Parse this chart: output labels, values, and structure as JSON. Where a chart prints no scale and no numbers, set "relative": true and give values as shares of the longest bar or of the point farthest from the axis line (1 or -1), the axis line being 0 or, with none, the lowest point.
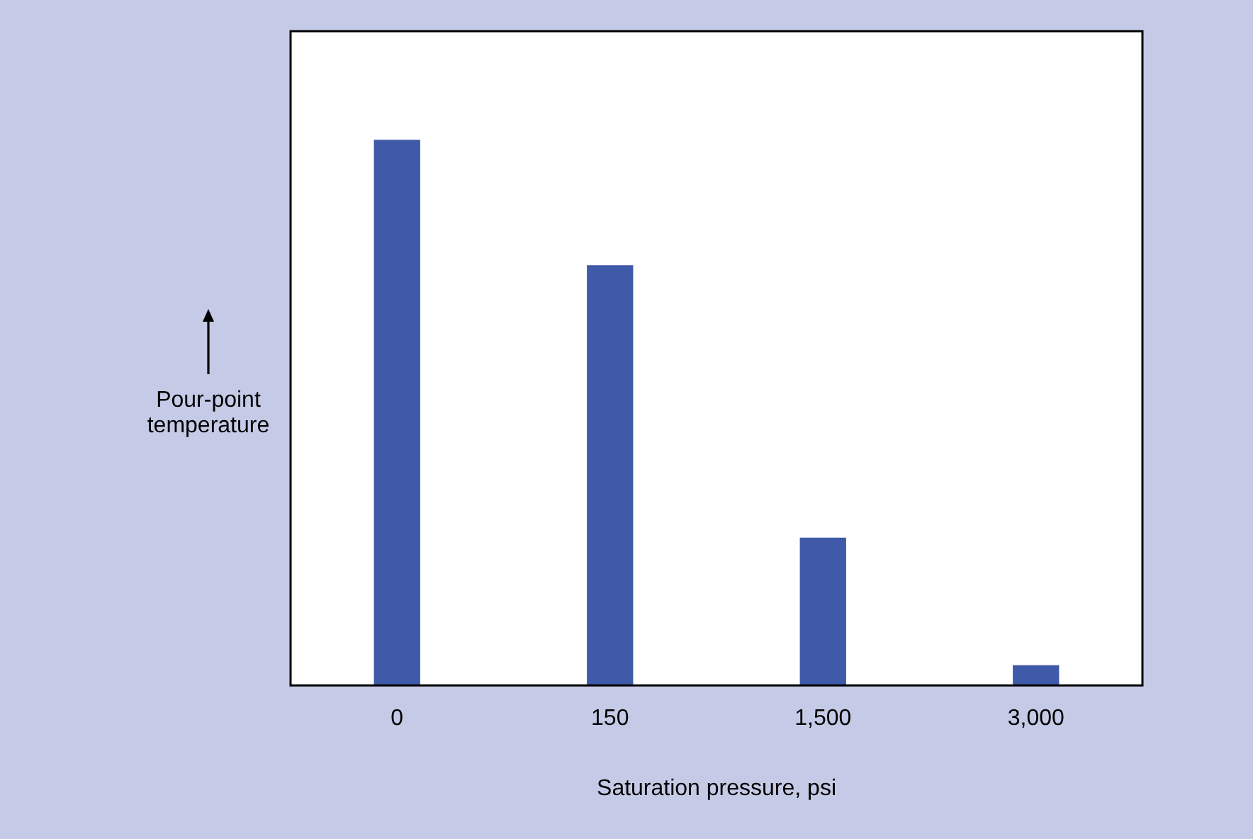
{
  "chart_data": {
    "type": "bar",
    "xlabel": "Saturation pressure, psi",
    "ylabel": "Pour-point temperature",
    "categories": [
      "0",
      "150",
      "1,500",
      "3,000"
    ],
    "values": [
      1,
      0.77,
      0.27,
      0.036
    ],
    "color": "#3f5aa8",
    "relative": true,
    "grid": false,
    "legend": false
  }
}
